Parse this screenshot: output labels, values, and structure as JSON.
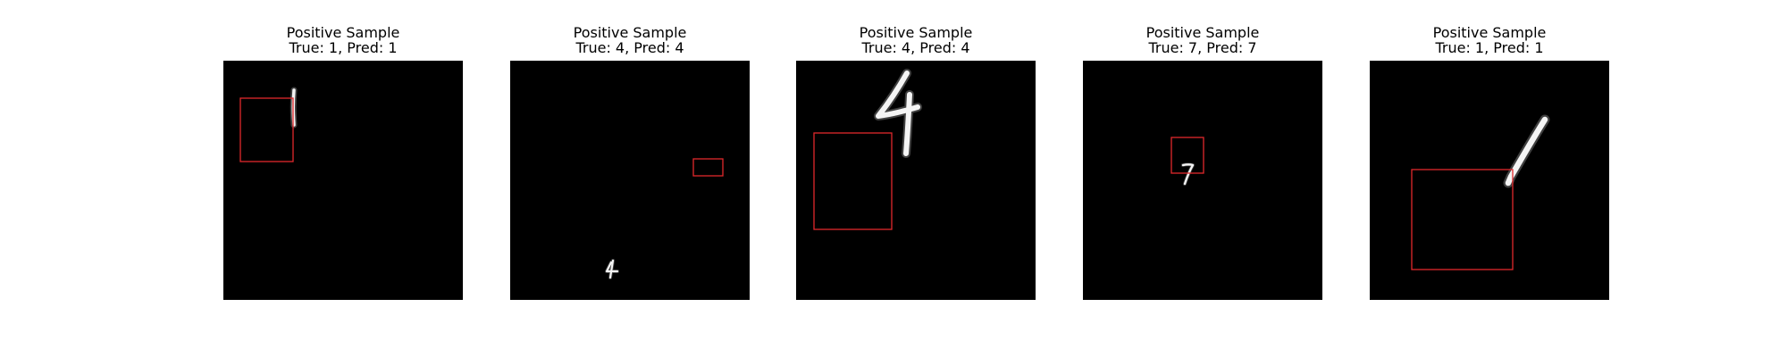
{
  "colors": {
    "background": "#ffffff",
    "image_background": "#000000",
    "digit": "#f4f4f4",
    "box": "#e0282b",
    "title_text": "#000000"
  },
  "samples": [
    {
      "title": "Positive Sample",
      "subtitle": "True: 1, Pred: 1",
      "true_label": 1,
      "pred_label": 1
    },
    {
      "title": "Positive Sample",
      "subtitle": "True: 4, Pred: 4",
      "true_label": 4,
      "pred_label": 4
    },
    {
      "title": "Positive Sample",
      "subtitle": "True: 4, Pred: 4",
      "true_label": 4,
      "pred_label": 4
    },
    {
      "title": "Positive Sample",
      "subtitle": "True: 7, Pred: 7",
      "true_label": 7,
      "pred_label": 7
    },
    {
      "title": "Positive Sample",
      "subtitle": "True: 1, Pred: 1",
      "true_label": 1,
      "pred_label": 1
    }
  ]
}
